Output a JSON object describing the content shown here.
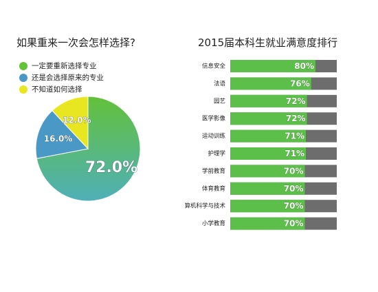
{
  "chart_data": [
    {
      "type": "pie",
      "title": "如果重来一次会怎样选择?",
      "legend_position": "top-left",
      "slices": [
        {
          "name": "一定要重新选择专业",
          "value": 72.0,
          "label": "72.0%",
          "color": "#63c13a"
        },
        {
          "name": "还是会选择原来的专业",
          "value": 16.0,
          "label": "16.0%",
          "color": "#4a98c6"
        },
        {
          "name": "不知道如何选择",
          "value": 12.0,
          "label": "12.0%",
          "color": "#e8e620"
        }
      ]
    },
    {
      "type": "bar",
      "orientation": "horizontal",
      "title": "2015届本科生就业满意度排行",
      "categories": [
        "信息安全",
        "法语",
        "园艺",
        "医学影像",
        "运动训练",
        "护理学",
        "学前教育",
        "体育教育",
        "计算机科学与技术",
        "小学教育"
      ],
      "values": [
        80,
        76,
        72,
        72,
        71,
        71,
        70,
        70,
        70,
        70
      ],
      "value_labels": [
        "80%",
        "76%",
        "72%",
        "72%",
        "71%",
        "71%",
        "70%",
        "70%",
        "70%",
        "70%"
      ],
      "xlim": [
        0,
        100
      ],
      "colors": {
        "fill": "#5cbf4a",
        "track": "#6d6d6d"
      }
    }
  ]
}
